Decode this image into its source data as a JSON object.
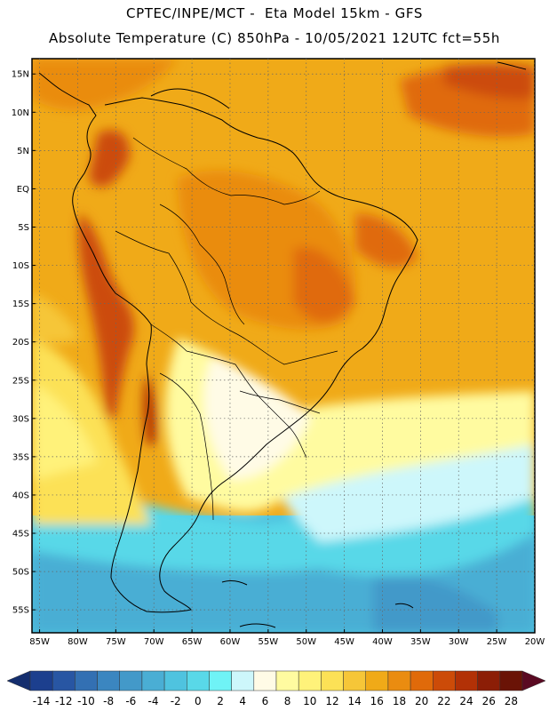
{
  "header": {
    "line1": "CPTEC/INPE/MCT -  Eta Model 15km - GFS",
    "line2": "Absolute Temperature (C) 850hPa - 10/05/2021 12UTC fct=55h"
  },
  "map": {
    "lat_labels": [
      "15N",
      "10N",
      "5N",
      "EQ",
      "5S",
      "10S",
      "15S",
      "20S",
      "25S",
      "30S",
      "35S",
      "40S",
      "45S",
      "50S",
      "55S"
    ],
    "lat_values": [
      15,
      10,
      5,
      0,
      -5,
      -10,
      -15,
      -20,
      -25,
      -30,
      -35,
      -40,
      -45,
      -50,
      -55
    ],
    "lon_labels": [
      "85W",
      "80W",
      "75W",
      "70W",
      "65W",
      "60W",
      "55W",
      "50W",
      "45W",
      "40W",
      "35W",
      "30W",
      "25W",
      "20W"
    ],
    "lon_values": [
      -85,
      -80,
      -75,
      -70,
      -65,
      -60,
      -55,
      -50,
      -45,
      -40,
      -35,
      -30,
      -25,
      -20
    ],
    "extent": {
      "lon": [
        -86,
        -20
      ],
      "lat": [
        -58,
        17
      ]
    },
    "gridlines": "dotted"
  },
  "colorbar": {
    "labels": [
      "-14",
      "-12",
      "-10",
      "-8",
      "-6",
      "-4",
      "-2",
      "0",
      "2",
      "4",
      "6",
      "8",
      "10",
      "12",
      "14",
      "16",
      "18",
      "20",
      "22",
      "24",
      "26",
      "28"
    ],
    "values": [
      -14,
      -12,
      -10,
      -8,
      -6,
      -4,
      -2,
      0,
      2,
      4,
      6,
      8,
      10,
      12,
      14,
      16,
      18,
      20,
      22,
      24,
      26,
      28
    ],
    "colors": [
      "#1c3f8e",
      "#2856a3",
      "#3370b3",
      "#3b86c0",
      "#4399c9",
      "#4aaed4",
      "#4fc3df",
      "#59d8e8",
      "#6ff3f6",
      "#cdf7fb",
      "#fffbe6",
      "#fffba0",
      "#fff27a",
      "#fce156",
      "#f6c638",
      "#f0aa18",
      "#ea8c10",
      "#e06a0a",
      "#cc4b08",
      "#b23106",
      "#8c1e06",
      "#6a1306"
    ],
    "under_color": "#142e6e",
    "over_color": "#5a0a22"
  }
}
